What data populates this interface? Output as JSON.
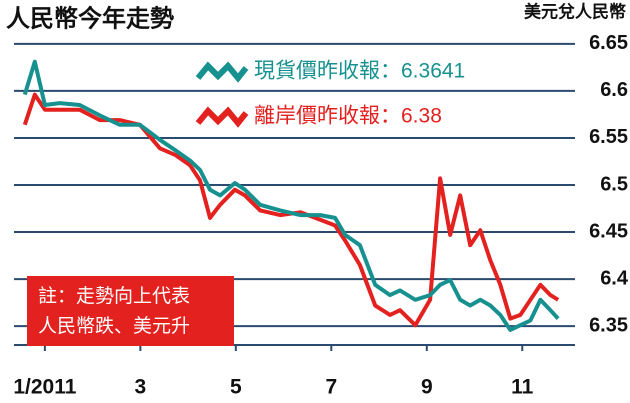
{
  "chart_data": {
    "type": "line",
    "title": "人民幣今年走勢",
    "y_axis_label": "美元兌人民幣",
    "note": [
      "註：走勢向上代表",
      "人民幣跌、美元升"
    ],
    "x": [
      0.58,
      0.79,
      1.0,
      1.31,
      1.73,
      2.15,
      2.57,
      2.99,
      3.41,
      3.73,
      4.04,
      4.25,
      4.46,
      4.67,
      4.98,
      5.19,
      5.51,
      5.93,
      6.35,
      6.77,
      7.08,
      7.29,
      7.6,
      7.92,
      8.23,
      8.44,
      8.76,
      9.07,
      9.28,
      9.49,
      9.7,
      9.91,
      10.12,
      10.33,
      10.54,
      10.75,
      10.96,
      11.17,
      11.38,
      11.59,
      11.75
    ],
    "series": [
      {
        "name": "現貨價昨收報：6.3641",
        "color": "#17918f",
        "values": [
          6.596,
          6.631,
          6.585,
          6.587,
          6.585,
          6.574,
          6.564,
          6.564,
          6.548,
          6.537,
          6.526,
          6.516,
          6.495,
          6.489,
          6.502,
          6.495,
          6.479,
          6.473,
          6.468,
          6.468,
          6.465,
          6.447,
          6.436,
          6.394,
          6.383,
          6.388,
          6.378,
          6.383,
          6.394,
          6.399,
          6.378,
          6.372,
          6.378,
          6.372,
          6.362,
          6.346,
          6.351,
          6.356,
          6.378,
          6.367,
          6.358
        ]
      },
      {
        "name": "離岸價昨收報：6.38",
        "color": "#e3211f",
        "values": [
          6.564,
          6.596,
          6.58,
          6.58,
          6.58,
          6.569,
          6.569,
          6.564,
          6.539,
          6.532,
          6.521,
          6.505,
          6.465,
          6.479,
          6.495,
          6.489,
          6.473,
          6.468,
          6.471,
          6.463,
          6.457,
          6.441,
          6.415,
          6.372,
          6.362,
          6.367,
          6.351,
          6.378,
          6.507,
          6.447,
          6.489,
          6.436,
          6.452,
          6.42,
          6.394,
          6.358,
          6.362,
          6.378,
          6.394,
          6.383,
          6.378
        ]
      }
    ],
    "xlim": [
      0.5,
      12
    ],
    "xticks": [
      {
        "value": 1,
        "label": "1/2011"
      },
      3,
      5,
      7,
      9,
      11
    ],
    "ylim": [
      6.33,
      6.67
    ],
    "yticks": [
      6.35,
      6.4,
      6.45,
      6.5,
      6.55,
      6.6,
      6.65
    ],
    "grid": true
  }
}
